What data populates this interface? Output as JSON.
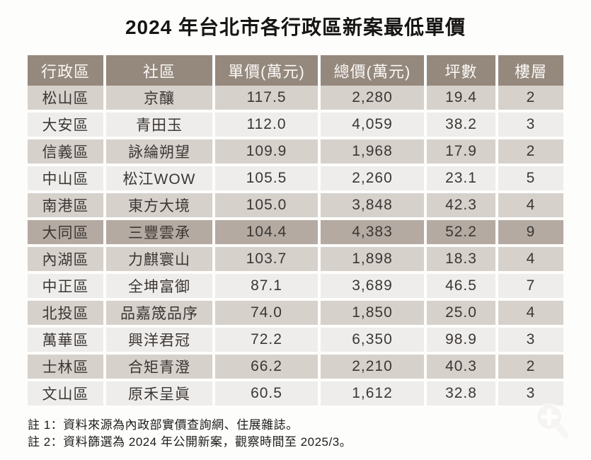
{
  "title": "2024 年台北市各行政區新案最低單價",
  "table": {
    "columns": [
      "行政區",
      "社區",
      "單價(萬元)",
      "總價(萬元)",
      "坪數",
      "樓層"
    ],
    "rows": [
      [
        "松山區",
        "京釀",
        "117.5",
        "2,280",
        "19.4",
        "2"
      ],
      [
        "大安區",
        "青田玉",
        "112.0",
        "4,059",
        "38.2",
        "3"
      ],
      [
        "信義區",
        "詠綸朔望",
        "109.9",
        "1,968",
        "17.9",
        "2"
      ],
      [
        "中山區",
        "松江WOW",
        "105.5",
        "2,260",
        "23.1",
        "5"
      ],
      [
        "南港區",
        "東方大境",
        "105.0",
        "3,848",
        "42.3",
        "4"
      ],
      [
        "大同區",
        "三豐雲承",
        "104.4",
        "4,383",
        "52.2",
        "9"
      ],
      [
        "內湖區",
        "力麒寰山",
        "103.7",
        "1,898",
        "18.3",
        "4"
      ],
      [
        "中正區",
        "全坤富御",
        "87.1",
        "3,689",
        "46.5",
        "7"
      ],
      [
        "北投區",
        "品嘉筬品序",
        "74.0",
        "1,850",
        "25.0",
        "4"
      ],
      [
        "萬華區",
        "興洋君冠",
        "72.2",
        "6,350",
        "98.9",
        "3"
      ],
      [
        "士林區",
        "合矩青澄",
        "66.2",
        "2,210",
        "40.3",
        "2"
      ],
      [
        "文山區",
        "原禾呈眞",
        "60.5",
        "1,612",
        "32.8",
        "3"
      ]
    ],
    "highlighted_row_index": 5
  },
  "notes": [
    "註 1：資料來源為內政部實價查詢網、住展雜誌。",
    "註 2：資料篩選為 2024 年公開新案，觀察時間至 2025/3。"
  ],
  "colors": {
    "header_bg": "#95897e",
    "header_text": "#faf8f5",
    "row_taupe": "#d6d1cb",
    "row_light": "#efedeb",
    "row_highlight": "#b4aaa2",
    "cell_text": "#3b3734",
    "title_text": "#161514"
  },
  "watermark": {
    "icon": "zoom-in-magnifier"
  },
  "chart_data": {
    "type": "table",
    "title": "2024 年台北市各行政區新案最低單價",
    "columns": [
      "行政區",
      "社區",
      "單價(萬元)",
      "總價(萬元)",
      "坪數",
      "樓層"
    ],
    "rows": [
      {
        "行政區": "松山區",
        "社區": "京釀",
        "單價_萬元": 117.5,
        "總價_萬元": 2280,
        "坪數": 19.4,
        "樓層": 2
      },
      {
        "行政區": "大安區",
        "社區": "青田玉",
        "單價_萬元": 112.0,
        "總價_萬元": 4059,
        "坪數": 38.2,
        "樓層": 3
      },
      {
        "行政區": "信義區",
        "社區": "詠綸朔望",
        "單價_萬元": 109.9,
        "總價_萬元": 1968,
        "坪數": 17.9,
        "樓層": 2
      },
      {
        "行政區": "中山區",
        "社區": "松江WOW",
        "單價_萬元": 105.5,
        "總價_萬元": 2260,
        "坪數": 23.1,
        "樓層": 5
      },
      {
        "行政區": "南港區",
        "社區": "東方大境",
        "單價_萬元": 105.0,
        "總價_萬元": 3848,
        "坪數": 42.3,
        "樓層": 4
      },
      {
        "行政區": "大同區",
        "社區": "三豐雲承",
        "單價_萬元": 104.4,
        "總價_萬元": 4383,
        "坪數": 52.2,
        "樓層": 9
      },
      {
        "行政區": "內湖區",
        "社區": "力麒寰山",
        "單價_萬元": 103.7,
        "總價_萬元": 1898,
        "坪數": 18.3,
        "樓層": 4
      },
      {
        "行政區": "中正區",
        "社區": "全坤富御",
        "單價_萬元": 87.1,
        "總價_萬元": 3689,
        "坪數": 46.5,
        "樓層": 7
      },
      {
        "行政區": "北投區",
        "社區": "品嘉筬品序",
        "單價_萬元": 74.0,
        "總價_萬元": 1850,
        "坪數": 25.0,
        "樓層": 4
      },
      {
        "行政區": "萬華區",
        "社區": "興洋君冠",
        "單價_萬元": 72.2,
        "總價_萬元": 6350,
        "坪數": 98.9,
        "樓層": 3
      },
      {
        "行政區": "士林區",
        "社區": "合矩青澄",
        "單價_萬元": 66.2,
        "總價_萬元": 2210,
        "坪數": 40.3,
        "樓層": 2
      },
      {
        "行政區": "文山區",
        "社區": "原禾呈眞",
        "單價_萬元": 60.5,
        "總價_萬元": 1612,
        "坪數": 32.8,
        "樓層": 3
      }
    ],
    "notes": [
      "註 1：資料來源為內政部實價查詢網、住展雜誌。",
      "註 2：資料篩選為 2024 年公開新案，觀察時間至 2025/3。"
    ],
    "highlighted_row": "大同區 三豐雲承"
  }
}
